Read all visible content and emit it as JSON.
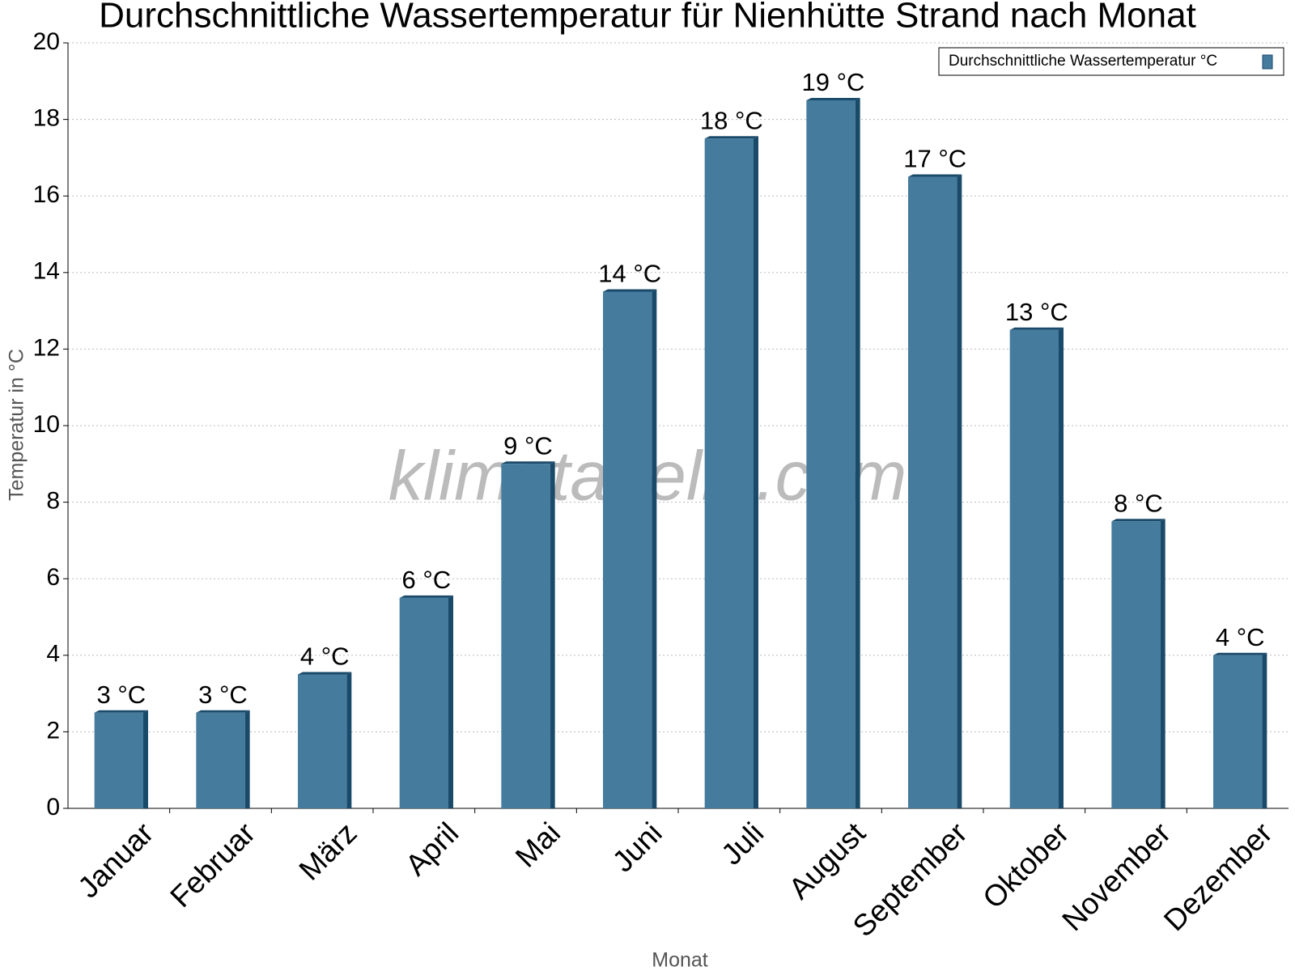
{
  "chart_data": {
    "type": "bar",
    "title": "Durchschnittliche Wassertemperatur für Nienhütte Strand nach Monat",
    "x_label": "Monat",
    "y_label": "Temperatur in °C",
    "watermark": "klimatabelle.com",
    "categories": [
      "Januar",
      "Februar",
      "März",
      "April",
      "Mai",
      "Juni",
      "Juli",
      "August",
      "September",
      "Oktober",
      "November",
      "Dezember"
    ],
    "series": [
      {
        "name": "Durchschnittliche Wassertemperatur °C",
        "color": "#457b9d",
        "values": [
          2.5,
          2.5,
          3.5,
          5.5,
          9,
          13.5,
          17.5,
          18.5,
          16.5,
          12.5,
          7.5,
          4
        ],
        "value_labels": [
          "3 °C",
          "3 °C",
          "4 °C",
          "6 °C",
          "9 °C",
          "14 °C",
          "18 °C",
          "19 °C",
          "17 °C",
          "13 °C",
          "8 °C",
          "4 °C"
        ]
      }
    ],
    "ylim": [
      0,
      20
    ],
    "yticks": [
      0,
      2,
      4,
      6,
      8,
      10,
      12,
      14,
      16,
      18,
      20
    ],
    "grid": true,
    "legend": "top-right"
  }
}
